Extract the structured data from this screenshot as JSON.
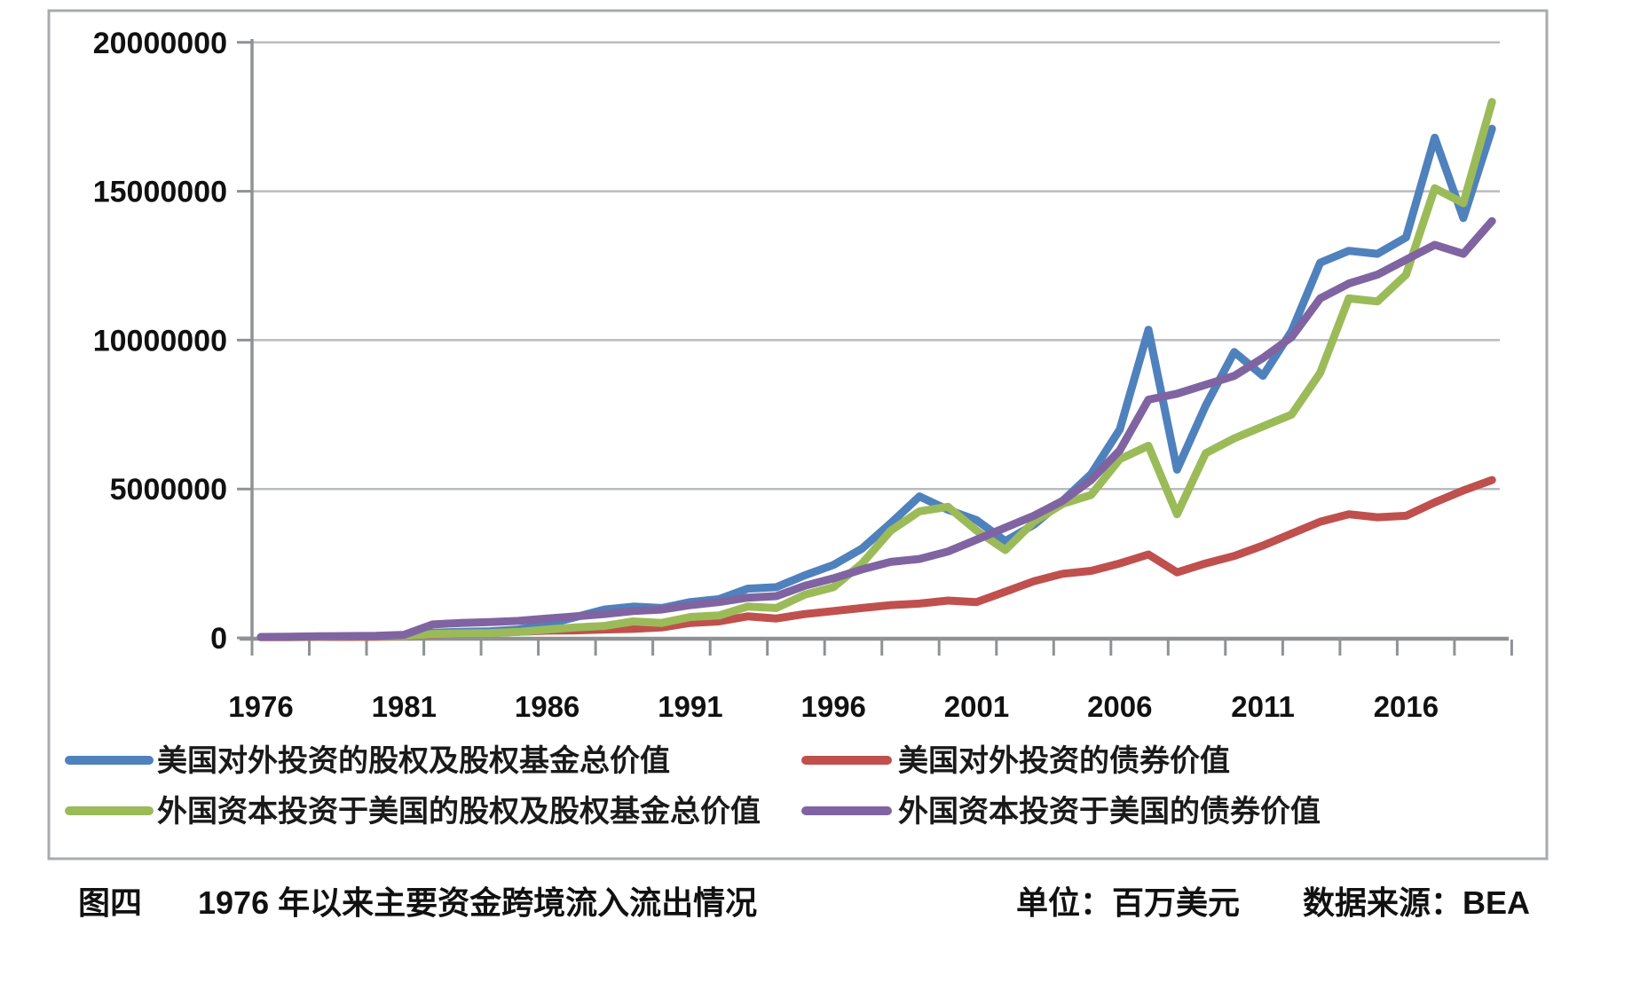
{
  "caption": {
    "figure_label": "图四",
    "title": "1976 年以来主要资金跨境流入流出情况",
    "unit_label": "单位：百万美元",
    "source_label": "数据来源：BEA"
  },
  "chart_data": {
    "type": "line",
    "title": "1976 年以来主要资金跨境流入流出情况",
    "unit": "百万美元",
    "source": "BEA",
    "grid": "horizontal-on",
    "legend_position": "bottom",
    "ylim": [
      0,
      20000000
    ],
    "y_ticks": [
      {
        "value": 20000000,
        "label": "20000000"
      },
      {
        "value": 15000000,
        "label": "15000000"
      },
      {
        "value": 10000000,
        "label": "10000000"
      },
      {
        "value": 5000000,
        "label": "5000000"
      },
      {
        "value": 0,
        "label": "0"
      }
    ],
    "x_labeled_years": [
      "1976",
      "1981",
      "1986",
      "1991",
      "1996",
      "2001",
      "2006",
      "2011",
      "2016"
    ],
    "x": [
      1976,
      1977,
      1978,
      1979,
      1980,
      1981,
      1982,
      1983,
      1984,
      1985,
      1986,
      1987,
      1988,
      1989,
      1990,
      1991,
      1992,
      1993,
      1994,
      1995,
      1996,
      1997,
      1998,
      1999,
      2000,
      2001,
      2002,
      2003,
      2004,
      2005,
      2006,
      2007,
      2008,
      2009,
      2010,
      2011,
      2012,
      2013,
      2014,
      2015,
      2016,
      2017,
      2018,
      2019
    ],
    "series": [
      {
        "name": "美国对外投资的股权及股权基金总价值",
        "color": "#4F81BD",
        "values": [
          30000,
          30000,
          40000,
          50000,
          60000,
          60000,
          170000,
          200000,
          220000,
          280000,
          450000,
          700000,
          950000,
          1050000,
          1000000,
          1200000,
          1300000,
          1650000,
          1700000,
          2100000,
          2450000,
          3000000,
          3850000,
          4750000,
          4300000,
          3950000,
          3250000,
          3800000,
          4600000,
          5500000,
          7000000,
          10350000,
          5650000,
          7800000,
          9600000,
          8800000,
          10300000,
          12600000,
          13000000,
          12900000,
          13450000,
          16800000,
          14100000,
          17100000
        ]
      },
      {
        "name": "美国对外投资的债券价值",
        "color": "#C0504D",
        "values": [
          20000,
          20000,
          30000,
          30000,
          40000,
          50000,
          120000,
          140000,
          160000,
          200000,
          240000,
          250000,
          280000,
          300000,
          350000,
          500000,
          550000,
          720000,
          650000,
          800000,
          900000,
          1000000,
          1100000,
          1150000,
          1250000,
          1200000,
          1550000,
          1900000,
          2150000,
          2250000,
          2500000,
          2800000,
          2200000,
          2500000,
          2750000,
          3100000,
          3500000,
          3900000,
          4150000,
          4050000,
          4100000,
          4550000,
          4950000,
          5300000
        ]
      },
      {
        "name": "外国资本投资于美国的股权及股权基金总价值",
        "color": "#9BBB59",
        "values": [
          30000,
          30000,
          40000,
          50000,
          60000,
          60000,
          130000,
          150000,
          160000,
          200000,
          280000,
          350000,
          400000,
          550000,
          500000,
          700000,
          750000,
          1050000,
          1000000,
          1450000,
          1700000,
          2500000,
          3600000,
          4250000,
          4400000,
          3600000,
          2950000,
          3900000,
          4500000,
          4800000,
          6000000,
          6450000,
          4150000,
          6200000,
          6700000,
          7100000,
          7500000,
          8900000,
          11400000,
          11300000,
          12200000,
          15100000,
          14600000,
          18000000
        ]
      },
      {
        "name": "外国资本投资于美国的债券价值",
        "color": "#8064A2",
        "values": [
          30000,
          40000,
          50000,
          60000,
          70000,
          100000,
          450000,
          500000,
          530000,
          570000,
          650000,
          720000,
          800000,
          900000,
          950000,
          1100000,
          1200000,
          1350000,
          1400000,
          1750000,
          2000000,
          2300000,
          2550000,
          2650000,
          2900000,
          3300000,
          3700000,
          4100000,
          4600000,
          5300000,
          6300000,
          8000000,
          8200000,
          8500000,
          8800000,
          9400000,
          10100000,
          11400000,
          11900000,
          12200000,
          12700000,
          13200000,
          12900000,
          14000000
        ]
      }
    ],
    "colors": {
      "grid": "#b9bcbe",
      "axis": "#8f9295",
      "box_border": "#a8abad"
    }
  }
}
